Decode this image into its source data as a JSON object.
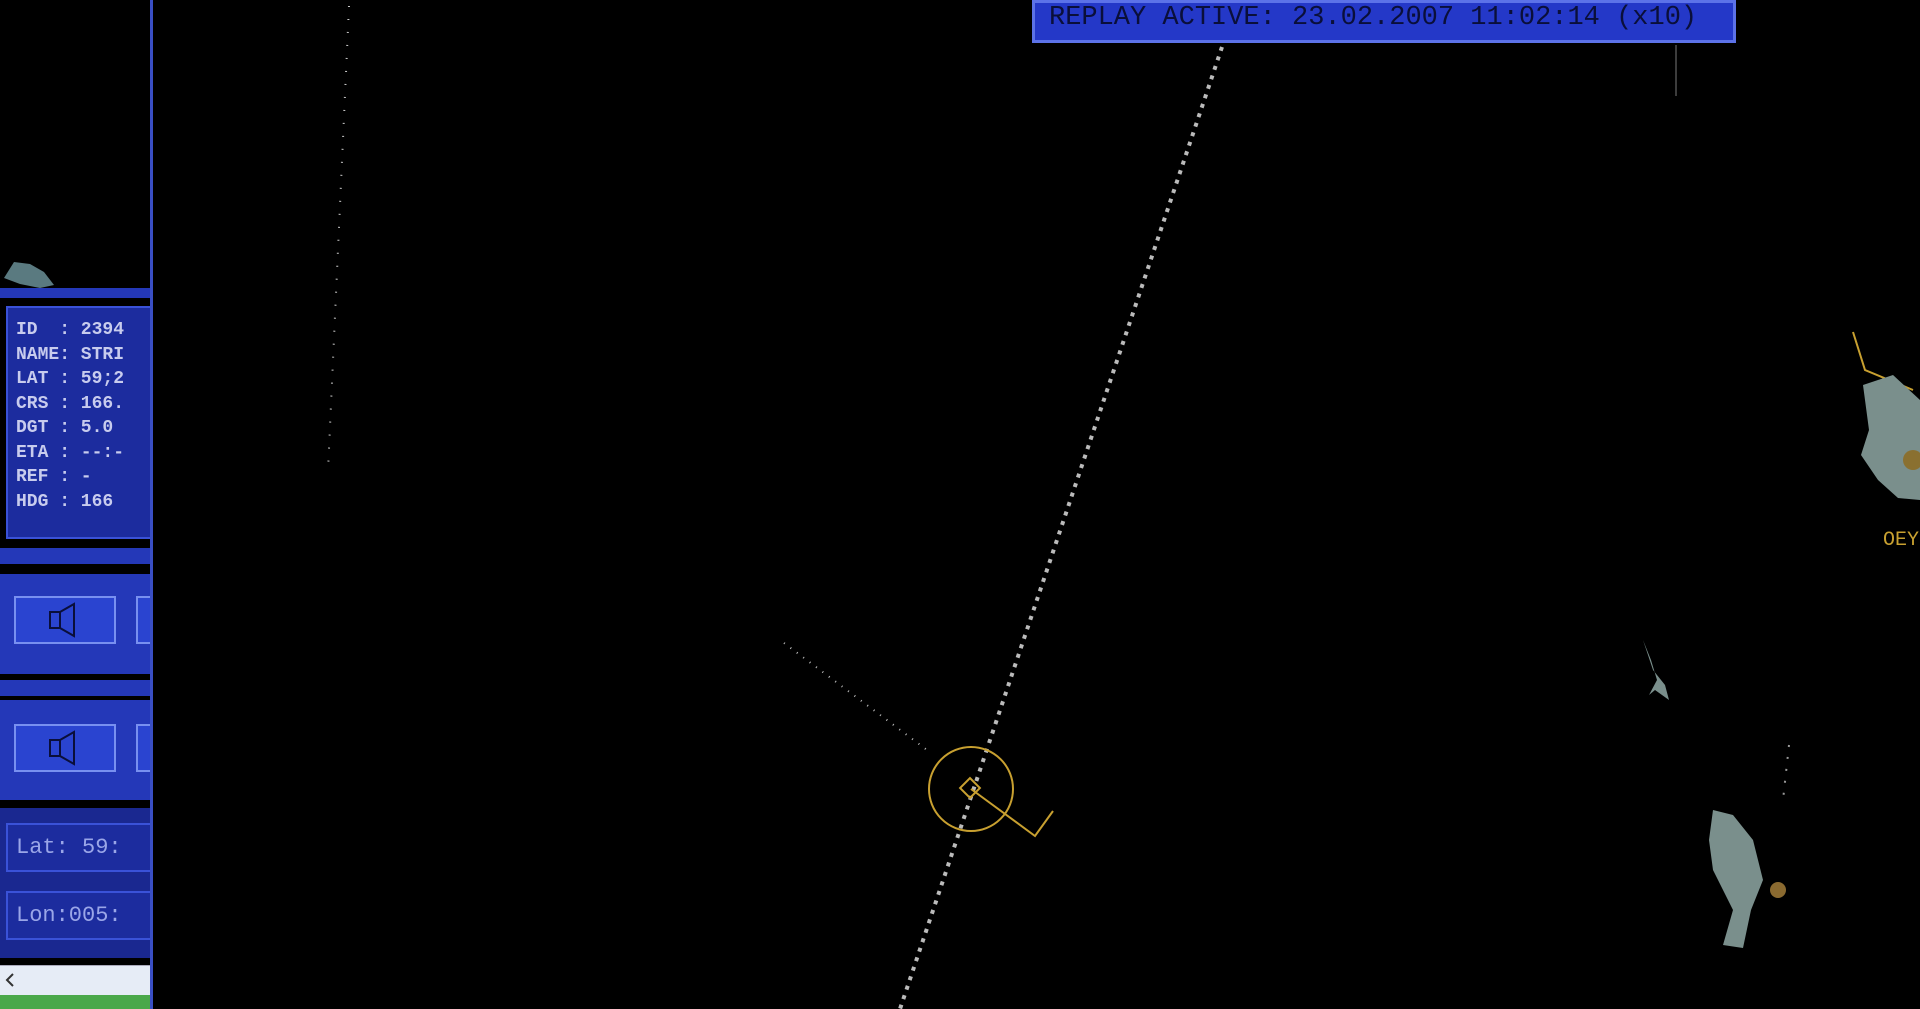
{
  "replay_banner": "REPLAY ACTIVE: 23.02.2007 11:02:14 (x10)",
  "info_panel": {
    "rows": [
      "ID  : 2394",
      "NAME: STRI",
      "LAT : 59;2",
      "CRS : 166.",
      "DGT : 5.0",
      "ETA : --:-",
      "REF : -",
      "HDG : 166"
    ]
  },
  "position": {
    "lat": "Lat: 59:",
    "lon": "Lon:005:"
  },
  "map_labels": [
    "OEY"
  ]
}
